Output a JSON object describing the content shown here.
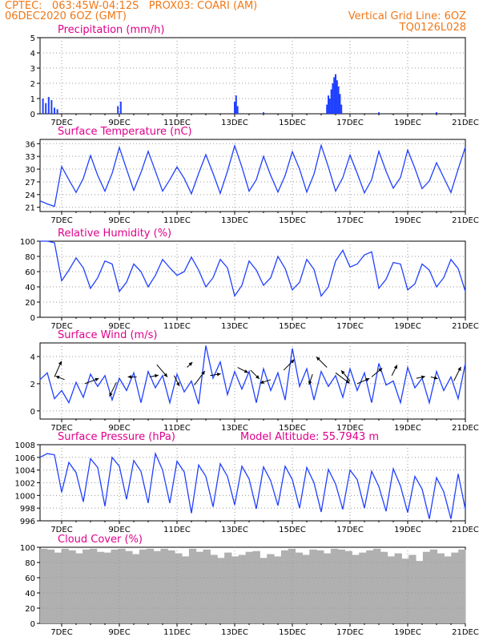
{
  "header": {
    "line1_left": "CPTEC:   063:45W-04:12S   PROX03: COARI (AM)",
    "line2_left": "06DEC2020 6OZ (GMT)",
    "line2_right": "Vertical Grid Line: 6OZ",
    "line3_right": "TQ0126L028",
    "color": "#f07818"
  },
  "date_ticks": [
    "7DEC",
    "9DEC",
    "11DEC",
    "13DEC",
    "15DEC",
    "17DEC",
    "19DEC",
    "21DEC"
  ],
  "title_color": "#e0008c",
  "series_color": "#2040ff",
  "model_altitude": "Model Altitude: 55.7943 m",
  "chart_data": [
    {
      "type": "bar",
      "title": "Precipitation (mm/h)",
      "ylim": [
        0,
        5
      ],
      "yticks": [
        "0",
        "1",
        "2",
        "3",
        "4",
        "5"
      ],
      "xrange_days": [
        6.25,
        21.0
      ],
      "x_unit": "day of December 2020",
      "grid": true,
      "x": [
        6.35,
        6.45,
        6.55,
        6.65,
        6.75,
        6.85,
        8.95,
        9.05,
        13.0,
        13.05,
        13.1,
        14.0,
        16.2,
        16.25,
        16.3,
        16.35,
        16.4,
        16.45,
        16.5,
        16.55,
        16.6,
        16.65,
        16.7,
        18.0,
        20.0
      ],
      "values": [
        1.0,
        0.7,
        1.1,
        0.9,
        0.4,
        0.3,
        0.5,
        0.8,
        0.8,
        1.2,
        0.5,
        0.1,
        0.6,
        1.2,
        1.0,
        1.6,
        2.0,
        2.4,
        2.6,
        2.2,
        1.8,
        1.3,
        0.6,
        0.1,
        0.1
      ]
    },
    {
      "type": "line",
      "title": "Surface Temperature (nC)",
      "ylim": [
        20,
        37
      ],
      "yticks": [
        "21",
        "24",
        "27",
        "30",
        "33",
        "36"
      ],
      "xrange_days": [
        6.25,
        21.0
      ],
      "x_unit": "day of December 2020",
      "grid": true,
      "x": [
        6.25,
        6.5,
        6.75,
        7.0,
        7.25,
        7.5,
        7.75,
        8.0,
        8.25,
        8.5,
        8.75,
        9.0,
        9.25,
        9.5,
        9.75,
        10.0,
        10.25,
        10.5,
        10.75,
        11.0,
        11.25,
        11.5,
        11.75,
        12.0,
        12.25,
        12.5,
        12.75,
        13.0,
        13.25,
        13.5,
        13.75,
        14.0,
        14.25,
        14.5,
        14.75,
        15.0,
        15.25,
        15.5,
        15.75,
        16.0,
        16.25,
        16.5,
        16.75,
        17.0,
        17.25,
        17.5,
        17.75,
        18.0,
        18.25,
        18.5,
        18.75,
        19.0,
        19.25,
        19.5,
        19.75,
        20.0,
        20.25,
        20.5,
        20.75,
        21.0
      ],
      "values": [
        22.5,
        21.8,
        21.2,
        30.6,
        27.5,
        24.5,
        27.8,
        33.2,
        28.5,
        24.8,
        29.0,
        35.1,
        30.0,
        25.0,
        29.2,
        34.2,
        29.5,
        24.8,
        27.5,
        30.5,
        27.8,
        24.2,
        29.0,
        33.4,
        29.0,
        24.3,
        29.5,
        35.5,
        30.5,
        24.8,
        27.5,
        33.0,
        28.5,
        24.6,
        28.5,
        34.1,
        30.0,
        24.6,
        28.8,
        35.6,
        30.5,
        24.8,
        28.0,
        33.3,
        29.0,
        24.4,
        27.5,
        34.2,
        29.5,
        25.5,
        28.0,
        34.5,
        30.2,
        25.4,
        27.2,
        31.5,
        28.0,
        24.5,
        30.0,
        35.2
      ]
    },
    {
      "type": "line",
      "title": "Relative Humidity (%)",
      "ylim": [
        0,
        100
      ],
      "yticks": [
        "0",
        "20",
        "40",
        "60",
        "80",
        "100"
      ],
      "xrange_days": [
        6.25,
        21.0
      ],
      "x_unit": "day of December 2020",
      "grid": true,
      "x": [
        6.25,
        6.5,
        6.75,
        7.0,
        7.25,
        7.5,
        7.75,
        8.0,
        8.25,
        8.5,
        8.75,
        9.0,
        9.25,
        9.5,
        9.75,
        10.0,
        10.25,
        10.5,
        10.75,
        11.0,
        11.25,
        11.5,
        11.75,
        12.0,
        12.25,
        12.5,
        12.75,
        13.0,
        13.25,
        13.5,
        13.75,
        14.0,
        14.25,
        14.5,
        14.75,
        15.0,
        15.25,
        15.5,
        15.75,
        16.0,
        16.25,
        16.5,
        16.75,
        17.0,
        17.25,
        17.5,
        17.75,
        18.0,
        18.25,
        18.5,
        18.75,
        19.0,
        19.25,
        19.5,
        19.75,
        20.0,
        20.25,
        20.5,
        20.75,
        21.0
      ],
      "values": [
        100,
        100,
        98,
        48,
        62,
        78,
        65,
        38,
        52,
        74,
        70,
        34,
        46,
        70,
        60,
        40,
        55,
        76,
        65,
        55,
        60,
        79,
        62,
        40,
        52,
        76,
        65,
        28,
        42,
        74,
        62,
        42,
        52,
        80,
        64,
        36,
        46,
        76,
        63,
        28,
        40,
        74,
        88,
        66,
        70,
        82,
        86,
        38,
        50,
        72,
        70,
        36,
        44,
        70,
        62,
        40,
        52,
        76,
        64,
        34
      ]
    },
    {
      "type": "line",
      "title": "Surface Wind (m/s)",
      "ylim": [
        -0.6,
        5.0
      ],
      "yticks": [
        "0",
        "2",
        "4"
      ],
      "xrange_days": [
        6.25,
        21.0
      ],
      "x_unit": "day of December 2020",
      "grid": true,
      "x": [
        6.25,
        6.5,
        6.75,
        7.0,
        7.25,
        7.5,
        7.75,
        8.0,
        8.25,
        8.5,
        8.75,
        9.0,
        9.25,
        9.5,
        9.75,
        10.0,
        10.25,
        10.5,
        10.75,
        11.0,
        11.25,
        11.5,
        11.75,
        12.0,
        12.25,
        12.5,
        12.75,
        13.0,
        13.25,
        13.5,
        13.75,
        14.0,
        14.25,
        14.5,
        14.75,
        15.0,
        15.25,
        15.5,
        15.75,
        16.0,
        16.25,
        16.5,
        16.75,
        17.0,
        17.25,
        17.5,
        17.75,
        18.0,
        18.25,
        18.5,
        18.75,
        19.0,
        19.25,
        19.5,
        19.75,
        20.0,
        20.25,
        20.5,
        20.75,
        21.0
      ],
      "values": [
        2.3,
        2.8,
        0.9,
        1.5,
        0.6,
        2.1,
        1.0,
        2.7,
        1.8,
        2.6,
        0.8,
        2.4,
        1.5,
        2.8,
        0.6,
        2.9,
        1.7,
        2.6,
        0.6,
        2.7,
        1.4,
        2.2,
        0.5,
        4.8,
        2.4,
        3.6,
        1.2,
        2.9,
        1.6,
        2.9,
        0.6,
        3.1,
        1.5,
        2.8,
        0.8,
        4.6,
        1.8,
        3.1,
        0.8,
        2.9,
        1.8,
        2.6,
        1.0,
        3.1,
        1.5,
        2.8,
        0.6,
        3.5,
        1.9,
        2.2,
        0.6,
        3.2,
        1.7,
        2.4,
        0.6,
        2.9,
        1.5,
        2.5,
        0.9,
        3.5
      ],
      "vectors": [
        {
          "x": 6.75,
          "y": 2.5,
          "u": 0.4,
          "v": 0.9
        },
        {
          "x": 7.1,
          "y": 2.3,
          "u": -0.5,
          "v": 0.2
        },
        {
          "x": 7.8,
          "y": 2.0,
          "u": 0.8,
          "v": 0.3
        },
        {
          "x": 8.9,
          "y": 2.1,
          "u": -0.4,
          "v": -0.8
        },
        {
          "x": 9.6,
          "y": 2.5,
          "u": -0.5,
          "v": 0.0
        },
        {
          "x": 10.05,
          "y": 2.5,
          "u": 0.5,
          "v": 0.1
        },
        {
          "x": 10.3,
          "y": 3.4,
          "u": 0.6,
          "v": -0.7
        },
        {
          "x": 10.9,
          "y": 2.6,
          "u": 0.3,
          "v": -0.6
        },
        {
          "x": 11.35,
          "y": 3.2,
          "u": 0.3,
          "v": 0.3
        },
        {
          "x": 11.6,
          "y": 1.9,
          "u": 0.6,
          "v": 0.8
        },
        {
          "x": 12.15,
          "y": 2.6,
          "u": 0.6,
          "v": 0.1
        },
        {
          "x": 13.1,
          "y": 3.2,
          "u": 0.6,
          "v": -0.3
        },
        {
          "x": 13.55,
          "y": 3.0,
          "u": 0.5,
          "v": -0.5
        },
        {
          "x": 14.25,
          "y": 2.3,
          "u": -0.6,
          "v": -0.2
        },
        {
          "x": 14.7,
          "y": 3.0,
          "u": 0.6,
          "v": 0.6
        },
        {
          "x": 15.7,
          "y": 2.7,
          "u": -0.2,
          "v": -0.6
        },
        {
          "x": 16.2,
          "y": 3.2,
          "u": -0.6,
          "v": 0.6
        },
        {
          "x": 16.5,
          "y": 2.8,
          "u": 0.8,
          "v": -0.6
        },
        {
          "x": 17.0,
          "y": 2.2,
          "u": -0.5,
          "v": 0.6
        },
        {
          "x": 17.25,
          "y": 2.0,
          "u": 0.7,
          "v": 0.3
        },
        {
          "x": 17.75,
          "y": 2.5,
          "u": 0.6,
          "v": 0.5
        },
        {
          "x": 18.45,
          "y": 2.6,
          "u": 0.3,
          "v": 0.6
        },
        {
          "x": 19.3,
          "y": 2.4,
          "u": 0.5,
          "v": 0.1
        },
        {
          "x": 19.8,
          "y": 2.5,
          "u": 0.4,
          "v": -0.1
        },
        {
          "x": 20.6,
          "y": 2.2,
          "u": 0.4,
          "v": 0.8
        }
      ]
    },
    {
      "type": "line",
      "title": "Surface Pressure (hPa)",
      "ylim": [
        996,
        1008
      ],
      "yticks": [
        "996",
        "998",
        "1000",
        "1002",
        "1004",
        "1006",
        "1008"
      ],
      "xrange_days": [
        6.25,
        21.0
      ],
      "x_unit": "day of December 2020",
      "grid": true,
      "x": [
        6.25,
        6.5,
        6.75,
        7.0,
        7.25,
        7.5,
        7.75,
        8.0,
        8.25,
        8.5,
        8.75,
        9.0,
        9.25,
        9.5,
        9.75,
        10.0,
        10.25,
        10.5,
        10.75,
        11.0,
        11.25,
        11.5,
        11.75,
        12.0,
        12.25,
        12.5,
        12.75,
        13.0,
        13.25,
        13.5,
        13.75,
        14.0,
        14.25,
        14.5,
        14.75,
        15.0,
        15.25,
        15.5,
        15.75,
        16.0,
        16.25,
        16.5,
        16.75,
        17.0,
        17.25,
        17.5,
        17.75,
        18.0,
        18.25,
        18.5,
        18.75,
        19.0,
        19.25,
        19.5,
        19.75,
        20.0,
        20.25,
        20.5,
        20.75,
        21.0
      ],
      "values": [
        1006.0,
        1006.6,
        1006.4,
        1000.5,
        1005.2,
        1003.6,
        999.0,
        1005.8,
        1004.4,
        998.3,
        1006.0,
        1004.6,
        999.4,
        1005.5,
        1003.8,
        998.8,
        1006.6,
        1004.0,
        998.8,
        1005.4,
        1003.7,
        997.2,
        1004.8,
        1003.0,
        998.2,
        1005.0,
        1003.0,
        998.5,
        1004.6,
        1002.6,
        997.9,
        1004.5,
        1002.3,
        998.4,
        1004.6,
        1002.5,
        998.0,
        1004.4,
        1002.0,
        997.4,
        1004.1,
        1001.8,
        997.8,
        1004.0,
        1002.5,
        998.0,
        1003.8,
        1001.4,
        997.5,
        1004.2,
        1001.5,
        997.3,
        1003.0,
        1001.0,
        996.3,
        1002.8,
        1000.6,
        996.3,
        1003.4,
        997.8
      ]
    },
    {
      "type": "bar",
      "title": "Cloud Cover (%)",
      "ylim": [
        0,
        100
      ],
      "yticks": [
        "0",
        "20",
        "40",
        "60",
        "80",
        "100"
      ],
      "xrange_days": [
        6.25,
        21.0
      ],
      "x_unit": "day of December 2020",
      "grid": true,
      "x": [
        6.25,
        6.5,
        6.75,
        7.0,
        7.25,
        7.5,
        7.75,
        8.0,
        8.25,
        8.5,
        8.75,
        9.0,
        9.25,
        9.5,
        9.75,
        10.0,
        10.25,
        10.5,
        10.75,
        11.0,
        11.25,
        11.5,
        11.75,
        12.0,
        12.25,
        12.5,
        12.75,
        13.0,
        13.25,
        13.5,
        13.75,
        14.0,
        14.25,
        14.5,
        14.75,
        15.0,
        15.25,
        15.5,
        15.75,
        16.0,
        16.25,
        16.5,
        16.75,
        17.0,
        17.25,
        17.5,
        17.75,
        18.0,
        18.25,
        18.5,
        18.75,
        19.0,
        19.25,
        19.5,
        19.75,
        20.0,
        20.25,
        20.5,
        20.75,
        21.0
      ],
      "values": [
        98,
        97,
        93,
        98,
        96,
        92,
        97,
        98,
        94,
        93,
        97,
        98,
        95,
        91,
        97,
        98,
        95,
        98,
        96,
        92,
        88,
        98,
        94,
        97,
        90,
        86,
        93,
        88,
        90,
        94,
        95,
        86,
        91,
        88,
        96,
        98,
        93,
        90,
        97,
        96,
        92,
        98,
        97,
        95,
        90,
        93,
        96,
        98,
        94,
        88,
        92,
        85,
        90,
        82,
        94,
        97,
        92,
        88,
        93,
        97
      ]
    }
  ]
}
